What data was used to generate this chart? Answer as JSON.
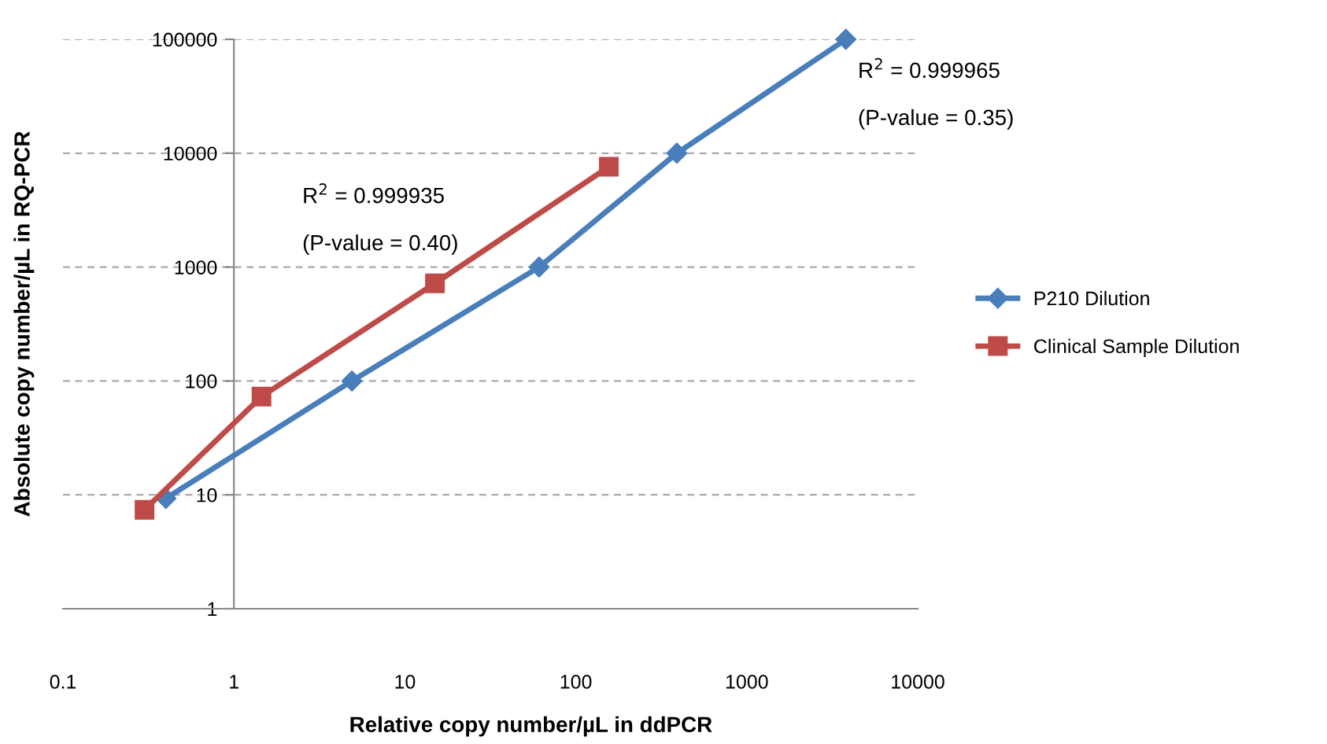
{
  "chart_data": {
    "type": "line",
    "xlabel": "Relative copy number/µL in ddPCR",
    "ylabel": "Absolute copy number/µL in RQ-PCR",
    "log": "xy",
    "xlim": [
      0.1,
      10000
    ],
    "ylim": [
      1,
      100000
    ],
    "xticks": [
      0.1,
      1,
      10,
      100,
      1000,
      10000
    ],
    "yticks": [
      1,
      10,
      100,
      1000,
      10000,
      100000
    ],
    "grid": "y",
    "legend": "right",
    "series": [
      {
        "name": "P210 Dilution",
        "color": "#4a7ebb",
        "marker": "diamond",
        "x": [
          0.4,
          4.9,
          61,
          390,
          3800
        ],
        "values": [
          9.3,
          100,
          1000,
          10000,
          100000
        ]
      },
      {
        "name": "Clinical Sample Dilution",
        "color": "#be4b48",
        "marker": "square",
        "x": [
          0.3,
          1.45,
          15,
          156
        ],
        "values": [
          7.4,
          73,
          720,
          7600
        ]
      }
    ],
    "annotations": [
      "R$^{2}$ = 0.999965\n\n(P-value = 0.35)",
      "R$^{2}$ = 0.999935\n\n(P-value = 0.40)"
    ]
  }
}
